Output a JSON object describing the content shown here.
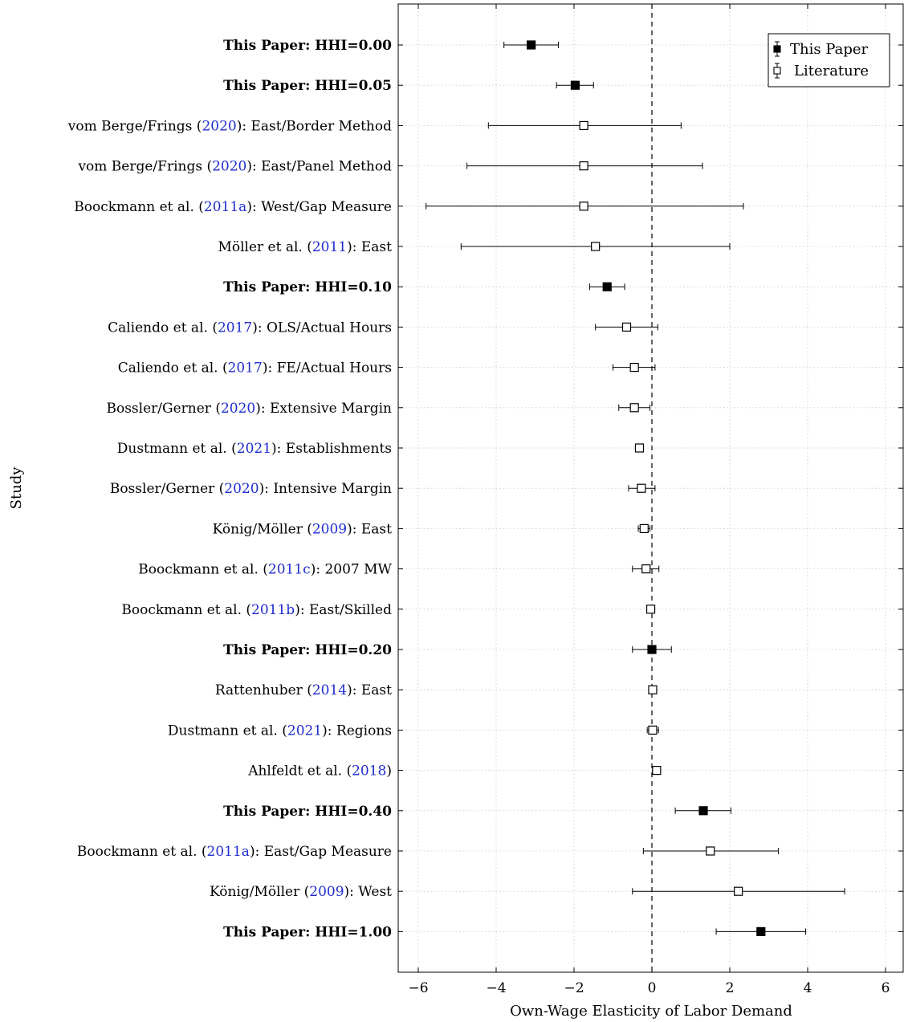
{
  "chart_data": {
    "type": "scatter",
    "subtype": "forest-plot",
    "title": "",
    "xlabel": "Own-Wage Elasticity of Labor Demand",
    "ylabel": "Study",
    "xlim": [
      -6.5,
      6.5
    ],
    "xticks": [
      -6,
      -4,
      -2,
      0,
      2,
      4,
      6
    ],
    "x_tick_labels": [
      "−6",
      "−4",
      "−2",
      "0",
      "2",
      "4",
      "6"
    ],
    "grid": true,
    "reference_line_x": 0,
    "legend": {
      "placement": "top-right",
      "entries": [
        {
          "name": "This Paper",
          "marker": "filled-square"
        },
        {
          "name": "Literature",
          "marker": "open-square"
        }
      ]
    },
    "studies": [
      {
        "label": "This Paper: HHI=0.00",
        "citation": "",
        "suffix": "",
        "group": "This Paper",
        "estimate": -3.1,
        "ci_low": -3.8,
        "ci_high": -2.4
      },
      {
        "label": "This Paper: HHI=0.05",
        "citation": "",
        "suffix": "",
        "group": "This Paper",
        "estimate": -1.97,
        "ci_low": -2.45,
        "ci_high": -1.5
      },
      {
        "label": "vom Berge/Frings (",
        "citation": "2020",
        "suffix": "): East/Border Method",
        "group": "Literature",
        "estimate": -1.75,
        "ci_low": -4.2,
        "ci_high": 0.75
      },
      {
        "label": "vom Berge/Frings (",
        "citation": "2020",
        "suffix": "): East/Panel Method",
        "group": "Literature",
        "estimate": -1.75,
        "ci_low": -4.75,
        "ci_high": 1.3
      },
      {
        "label": "Boockmann et al. (",
        "citation": "2011a",
        "suffix": "): West/Gap Measure",
        "group": "Literature",
        "estimate": -1.75,
        "ci_low": -5.8,
        "ci_high": 2.35
      },
      {
        "label": "Möller et al. (",
        "citation": "2011",
        "suffix": "): East",
        "group": "Literature",
        "estimate": -1.45,
        "ci_low": -4.9,
        "ci_high": 2.0
      },
      {
        "label": "This Paper: HHI=0.10",
        "citation": "",
        "suffix": "",
        "group": "This Paper",
        "estimate": -1.15,
        "ci_low": -1.6,
        "ci_high": -0.7
      },
      {
        "label": "Caliendo et al. (",
        "citation": "2017",
        "suffix": "): OLS/Actual Hours",
        "group": "Literature",
        "estimate": -0.65,
        "ci_low": -1.45,
        "ci_high": 0.15
      },
      {
        "label": "Caliendo et al. (",
        "citation": "2017",
        "suffix": "): FE/Actual Hours",
        "group": "Literature",
        "estimate": -0.45,
        "ci_low": -1.0,
        "ci_high": 0.08
      },
      {
        "label": "Bossler/Gerner (",
        "citation": "2020",
        "suffix": "): Extensive Margin",
        "group": "Literature",
        "estimate": -0.45,
        "ci_low": -0.85,
        "ci_high": -0.05
      },
      {
        "label": "Dustmann et al. (",
        "citation": "2021",
        "suffix": "): Establishments",
        "group": "Literature",
        "estimate": -0.32,
        "ci_low": -0.32,
        "ci_high": -0.32
      },
      {
        "label": "Bossler/Gerner (",
        "citation": "2020",
        "suffix": "): Intensive Margin",
        "group": "Literature",
        "estimate": -0.27,
        "ci_low": -0.6,
        "ci_high": 0.08
      },
      {
        "label": "König/Möller (",
        "citation": "2009",
        "suffix": "): East",
        "group": "Literature",
        "estimate": -0.2,
        "ci_low": -0.35,
        "ci_high": -0.05
      },
      {
        "label": "Boockmann et al. (",
        "citation": "2011c",
        "suffix": "): 2007 MW",
        "group": "Literature",
        "estimate": -0.15,
        "ci_low": -0.5,
        "ci_high": 0.18
      },
      {
        "label": "Boockmann et al. (",
        "citation": "2011b",
        "suffix": "): East/Skilled",
        "group": "Literature",
        "estimate": -0.03,
        "ci_low": -0.08,
        "ci_high": 0.02
      },
      {
        "label": "This Paper: HHI=0.20",
        "citation": "",
        "suffix": "",
        "group": "This Paper",
        "estimate": 0.0,
        "ci_low": -0.5,
        "ci_high": 0.5
      },
      {
        "label": "Rattenhuber (",
        "citation": "2014",
        "suffix": "): East",
        "group": "Literature",
        "estimate": 0.02,
        "ci_low": 0.02,
        "ci_high": 0.02
      },
      {
        "label": "Dustmann et al. (",
        "citation": "2021",
        "suffix": "): Regions",
        "group": "Literature",
        "estimate": 0.02,
        "ci_low": -0.12,
        "ci_high": 0.17
      },
      {
        "label": "Ahlfeldt et al. (",
        "citation": "2018",
        "suffix": ")",
        "group": "Literature",
        "estimate": 0.12,
        "ci_low": 0.05,
        "ci_high": 0.18
      },
      {
        "label": "This Paper: HHI=0.40",
        "citation": "",
        "suffix": "",
        "group": "This Paper",
        "estimate": 1.32,
        "ci_low": 0.6,
        "ci_high": 2.03
      },
      {
        "label": "Boockmann et al. (",
        "citation": "2011a",
        "suffix": "): East/Gap Measure",
        "group": "Literature",
        "estimate": 1.5,
        "ci_low": -0.22,
        "ci_high": 3.25
      },
      {
        "label": "König/Möller (",
        "citation": "2009",
        "suffix": "): West",
        "group": "Literature",
        "estimate": 2.22,
        "ci_low": -0.5,
        "ci_high": 4.95
      },
      {
        "label": "This Paper: HHI=1.00",
        "citation": "",
        "suffix": "",
        "group": "This Paper",
        "estimate": 2.8,
        "ci_low": 1.65,
        "ci_high": 3.95
      }
    ]
  }
}
